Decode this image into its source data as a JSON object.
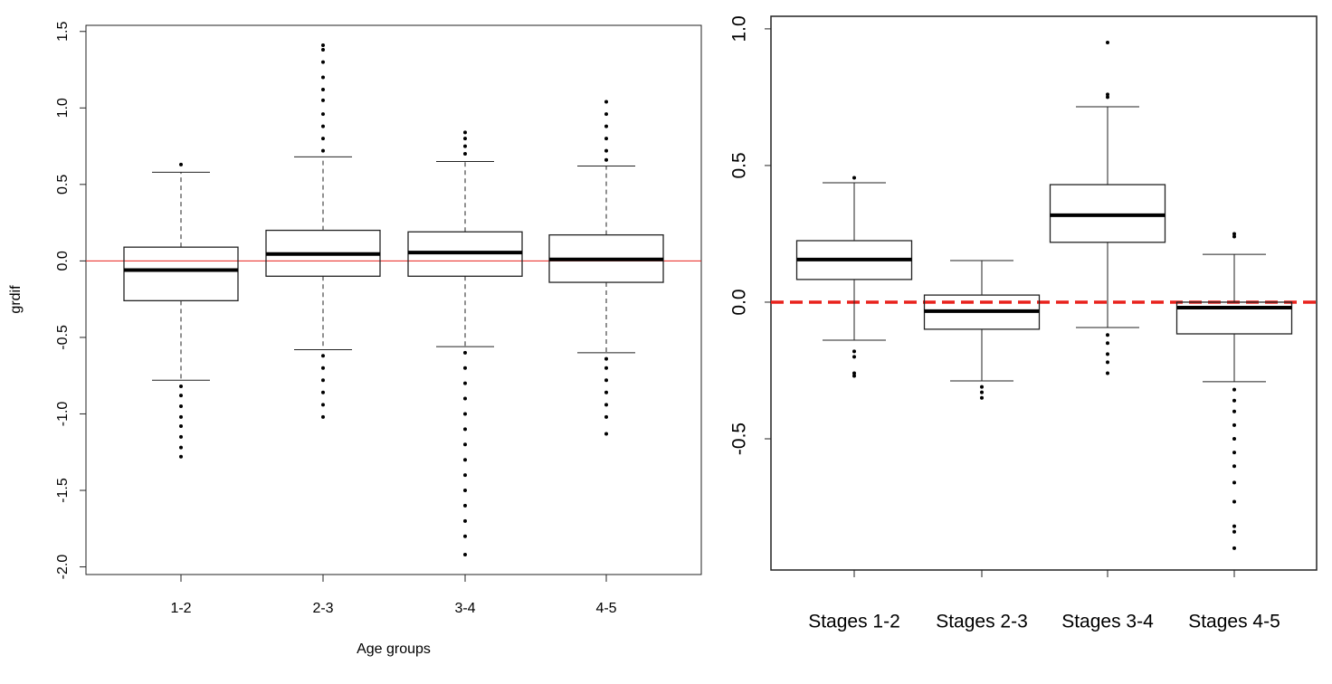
{
  "chart_data": [
    {
      "type": "box",
      "y_label": "grdif",
      "x_label": "Age groups",
      "categories": [
        "1-2",
        "2-3",
        "3-4",
        "4-5"
      ],
      "ylim": [
        -2.05,
        1.54
      ],
      "yticks": [
        {
          "value": -2,
          "label": "-2.0"
        },
        -1.5,
        {
          "value": -1,
          "label": "-1.0"
        },
        -0.5,
        {
          "value": 0,
          "label": "0.0"
        },
        0.5,
        {
          "value": 1,
          "label": "1.0"
        },
        1.5
      ],
      "whisker_style": "dashed",
      "reference_line": {
        "value": 0,
        "color": "#e8211c",
        "dashed": false
      },
      "boxes": [
        {
          "whisker_low": -0.78,
          "q1": -0.26,
          "median": -0.06,
          "q3": 0.09,
          "whisker_high": 0.58,
          "outliers": [
            0.63,
            -0.82,
            -0.88,
            -0.95,
            -1.02,
            -1.08,
            -1.15,
            -1.22,
            -1.28
          ]
        },
        {
          "whisker_low": -0.58,
          "q1": -0.1,
          "median": 0.045,
          "q3": 0.2,
          "whisker_high": 0.68,
          "outliers": [
            0.72,
            0.8,
            0.88,
            0.96,
            1.05,
            1.12,
            1.2,
            1.3,
            1.38,
            1.41,
            -0.62,
            -0.7,
            -0.78,
            -0.86,
            -0.94,
            -1.02
          ]
        },
        {
          "whisker_low": -0.56,
          "q1": -0.1,
          "median": 0.055,
          "q3": 0.19,
          "whisker_high": 0.65,
          "outliers": [
            0.7,
            0.75,
            0.8,
            0.84,
            -0.6,
            -0.7,
            -0.8,
            -0.9,
            -1.0,
            -1.1,
            -1.2,
            -1.3,
            -1.4,
            -1.5,
            -1.6,
            -1.7,
            -1.8,
            -1.92
          ]
        },
        {
          "whisker_low": -0.6,
          "q1": -0.14,
          "median": 0.01,
          "q3": 0.17,
          "whisker_high": 0.62,
          "outliers": [
            0.66,
            0.72,
            0.8,
            0.88,
            0.96,
            1.04,
            -0.64,
            -0.7,
            -0.78,
            -0.86,
            -0.94,
            -1.02,
            -1.13
          ]
        }
      ]
    },
    {
      "type": "box",
      "categories": [
        "Stages 1-2",
        "Stages 2-3",
        "Stages 3-4",
        "Stages 4-5"
      ],
      "ylim": [
        -0.98,
        1.046
      ],
      "yticks": [
        -0.5,
        {
          "value": 0,
          "label": "0.0"
        },
        0.5,
        {
          "value": 1,
          "label": "1.0"
        }
      ],
      "whisker_style": "solid",
      "reference_line": {
        "value": 0,
        "color": "#e8211c",
        "dashed": true
      },
      "boxes": [
        {
          "whisker_low": -0.139,
          "q1": 0.083,
          "median": 0.156,
          "q3": 0.225,
          "whisker_high": 0.437,
          "outliers": [
            0.455,
            -0.18,
            -0.2,
            -0.26,
            -0.27
          ]
        },
        {
          "whisker_low": -0.288,
          "q1": -0.099,
          "median": -0.033,
          "q3": 0.026,
          "whisker_high": 0.152,
          "outliers": [
            -0.31,
            -0.33,
            -0.35
          ]
        },
        {
          "whisker_low": -0.093,
          "q1": 0.219,
          "median": 0.318,
          "q3": 0.43,
          "whisker_high": 0.715,
          "outliers": [
            0.75,
            0.76,
            0.95,
            -0.12,
            -0.15,
            -0.19,
            -0.22,
            -0.26
          ]
        },
        {
          "whisker_low": -0.291,
          "q1": -0.116,
          "median": -0.02,
          "q3": 0.0,
          "whisker_high": 0.175,
          "outliers": [
            0.25,
            0.24,
            -0.32,
            -0.36,
            -0.4,
            -0.45,
            -0.5,
            -0.55,
            -0.6,
            -0.66,
            -0.73,
            -0.82,
            -0.84,
            -0.9
          ]
        }
      ]
    }
  ]
}
